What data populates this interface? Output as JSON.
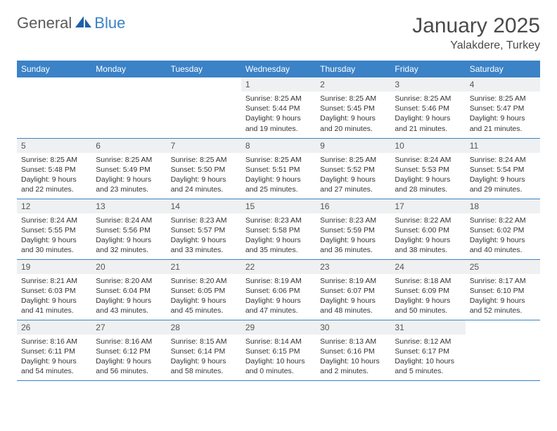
{
  "brand": {
    "part1": "General",
    "part2": "Blue",
    "logo_color": "#1f5fa8"
  },
  "header": {
    "title": "January 2025",
    "location": "Yalakdere, Turkey"
  },
  "colors": {
    "header_bg": "#3b82c7",
    "header_fg": "#ffffff",
    "daynum_bg": "#eef0f1",
    "row_divider": "#3b82c7",
    "text": "#333333",
    "title_color": "#4a4a4a"
  },
  "weekdays": [
    "Sunday",
    "Monday",
    "Tuesday",
    "Wednesday",
    "Thursday",
    "Friday",
    "Saturday"
  ],
  "weeks": [
    [
      {
        "num": "",
        "lines": []
      },
      {
        "num": "",
        "lines": []
      },
      {
        "num": "",
        "lines": []
      },
      {
        "num": "1",
        "lines": [
          "Sunrise: 8:25 AM",
          "Sunset: 5:44 PM",
          "Daylight: 9 hours",
          "and 19 minutes."
        ]
      },
      {
        "num": "2",
        "lines": [
          "Sunrise: 8:25 AM",
          "Sunset: 5:45 PM",
          "Daylight: 9 hours",
          "and 20 minutes."
        ]
      },
      {
        "num": "3",
        "lines": [
          "Sunrise: 8:25 AM",
          "Sunset: 5:46 PM",
          "Daylight: 9 hours",
          "and 21 minutes."
        ]
      },
      {
        "num": "4",
        "lines": [
          "Sunrise: 8:25 AM",
          "Sunset: 5:47 PM",
          "Daylight: 9 hours",
          "and 21 minutes."
        ]
      }
    ],
    [
      {
        "num": "5",
        "lines": [
          "Sunrise: 8:25 AM",
          "Sunset: 5:48 PM",
          "Daylight: 9 hours",
          "and 22 minutes."
        ]
      },
      {
        "num": "6",
        "lines": [
          "Sunrise: 8:25 AM",
          "Sunset: 5:49 PM",
          "Daylight: 9 hours",
          "and 23 minutes."
        ]
      },
      {
        "num": "7",
        "lines": [
          "Sunrise: 8:25 AM",
          "Sunset: 5:50 PM",
          "Daylight: 9 hours",
          "and 24 minutes."
        ]
      },
      {
        "num": "8",
        "lines": [
          "Sunrise: 8:25 AM",
          "Sunset: 5:51 PM",
          "Daylight: 9 hours",
          "and 25 minutes."
        ]
      },
      {
        "num": "9",
        "lines": [
          "Sunrise: 8:25 AM",
          "Sunset: 5:52 PM",
          "Daylight: 9 hours",
          "and 27 minutes."
        ]
      },
      {
        "num": "10",
        "lines": [
          "Sunrise: 8:24 AM",
          "Sunset: 5:53 PM",
          "Daylight: 9 hours",
          "and 28 minutes."
        ]
      },
      {
        "num": "11",
        "lines": [
          "Sunrise: 8:24 AM",
          "Sunset: 5:54 PM",
          "Daylight: 9 hours",
          "and 29 minutes."
        ]
      }
    ],
    [
      {
        "num": "12",
        "lines": [
          "Sunrise: 8:24 AM",
          "Sunset: 5:55 PM",
          "Daylight: 9 hours",
          "and 30 minutes."
        ]
      },
      {
        "num": "13",
        "lines": [
          "Sunrise: 8:24 AM",
          "Sunset: 5:56 PM",
          "Daylight: 9 hours",
          "and 32 minutes."
        ]
      },
      {
        "num": "14",
        "lines": [
          "Sunrise: 8:23 AM",
          "Sunset: 5:57 PM",
          "Daylight: 9 hours",
          "and 33 minutes."
        ]
      },
      {
        "num": "15",
        "lines": [
          "Sunrise: 8:23 AM",
          "Sunset: 5:58 PM",
          "Daylight: 9 hours",
          "and 35 minutes."
        ]
      },
      {
        "num": "16",
        "lines": [
          "Sunrise: 8:23 AM",
          "Sunset: 5:59 PM",
          "Daylight: 9 hours",
          "and 36 minutes."
        ]
      },
      {
        "num": "17",
        "lines": [
          "Sunrise: 8:22 AM",
          "Sunset: 6:00 PM",
          "Daylight: 9 hours",
          "and 38 minutes."
        ]
      },
      {
        "num": "18",
        "lines": [
          "Sunrise: 8:22 AM",
          "Sunset: 6:02 PM",
          "Daylight: 9 hours",
          "and 40 minutes."
        ]
      }
    ],
    [
      {
        "num": "19",
        "lines": [
          "Sunrise: 8:21 AM",
          "Sunset: 6:03 PM",
          "Daylight: 9 hours",
          "and 41 minutes."
        ]
      },
      {
        "num": "20",
        "lines": [
          "Sunrise: 8:20 AM",
          "Sunset: 6:04 PM",
          "Daylight: 9 hours",
          "and 43 minutes."
        ]
      },
      {
        "num": "21",
        "lines": [
          "Sunrise: 8:20 AM",
          "Sunset: 6:05 PM",
          "Daylight: 9 hours",
          "and 45 minutes."
        ]
      },
      {
        "num": "22",
        "lines": [
          "Sunrise: 8:19 AM",
          "Sunset: 6:06 PM",
          "Daylight: 9 hours",
          "and 47 minutes."
        ]
      },
      {
        "num": "23",
        "lines": [
          "Sunrise: 8:19 AM",
          "Sunset: 6:07 PM",
          "Daylight: 9 hours",
          "and 48 minutes."
        ]
      },
      {
        "num": "24",
        "lines": [
          "Sunrise: 8:18 AM",
          "Sunset: 6:09 PM",
          "Daylight: 9 hours",
          "and 50 minutes."
        ]
      },
      {
        "num": "25",
        "lines": [
          "Sunrise: 8:17 AM",
          "Sunset: 6:10 PM",
          "Daylight: 9 hours",
          "and 52 minutes."
        ]
      }
    ],
    [
      {
        "num": "26",
        "lines": [
          "Sunrise: 8:16 AM",
          "Sunset: 6:11 PM",
          "Daylight: 9 hours",
          "and 54 minutes."
        ]
      },
      {
        "num": "27",
        "lines": [
          "Sunrise: 8:16 AM",
          "Sunset: 6:12 PM",
          "Daylight: 9 hours",
          "and 56 minutes."
        ]
      },
      {
        "num": "28",
        "lines": [
          "Sunrise: 8:15 AM",
          "Sunset: 6:14 PM",
          "Daylight: 9 hours",
          "and 58 minutes."
        ]
      },
      {
        "num": "29",
        "lines": [
          "Sunrise: 8:14 AM",
          "Sunset: 6:15 PM",
          "Daylight: 10 hours",
          "and 0 minutes."
        ]
      },
      {
        "num": "30",
        "lines": [
          "Sunrise: 8:13 AM",
          "Sunset: 6:16 PM",
          "Daylight: 10 hours",
          "and 2 minutes."
        ]
      },
      {
        "num": "31",
        "lines": [
          "Sunrise: 8:12 AM",
          "Sunset: 6:17 PM",
          "Daylight: 10 hours",
          "and 5 minutes."
        ]
      },
      {
        "num": "",
        "lines": []
      }
    ]
  ]
}
